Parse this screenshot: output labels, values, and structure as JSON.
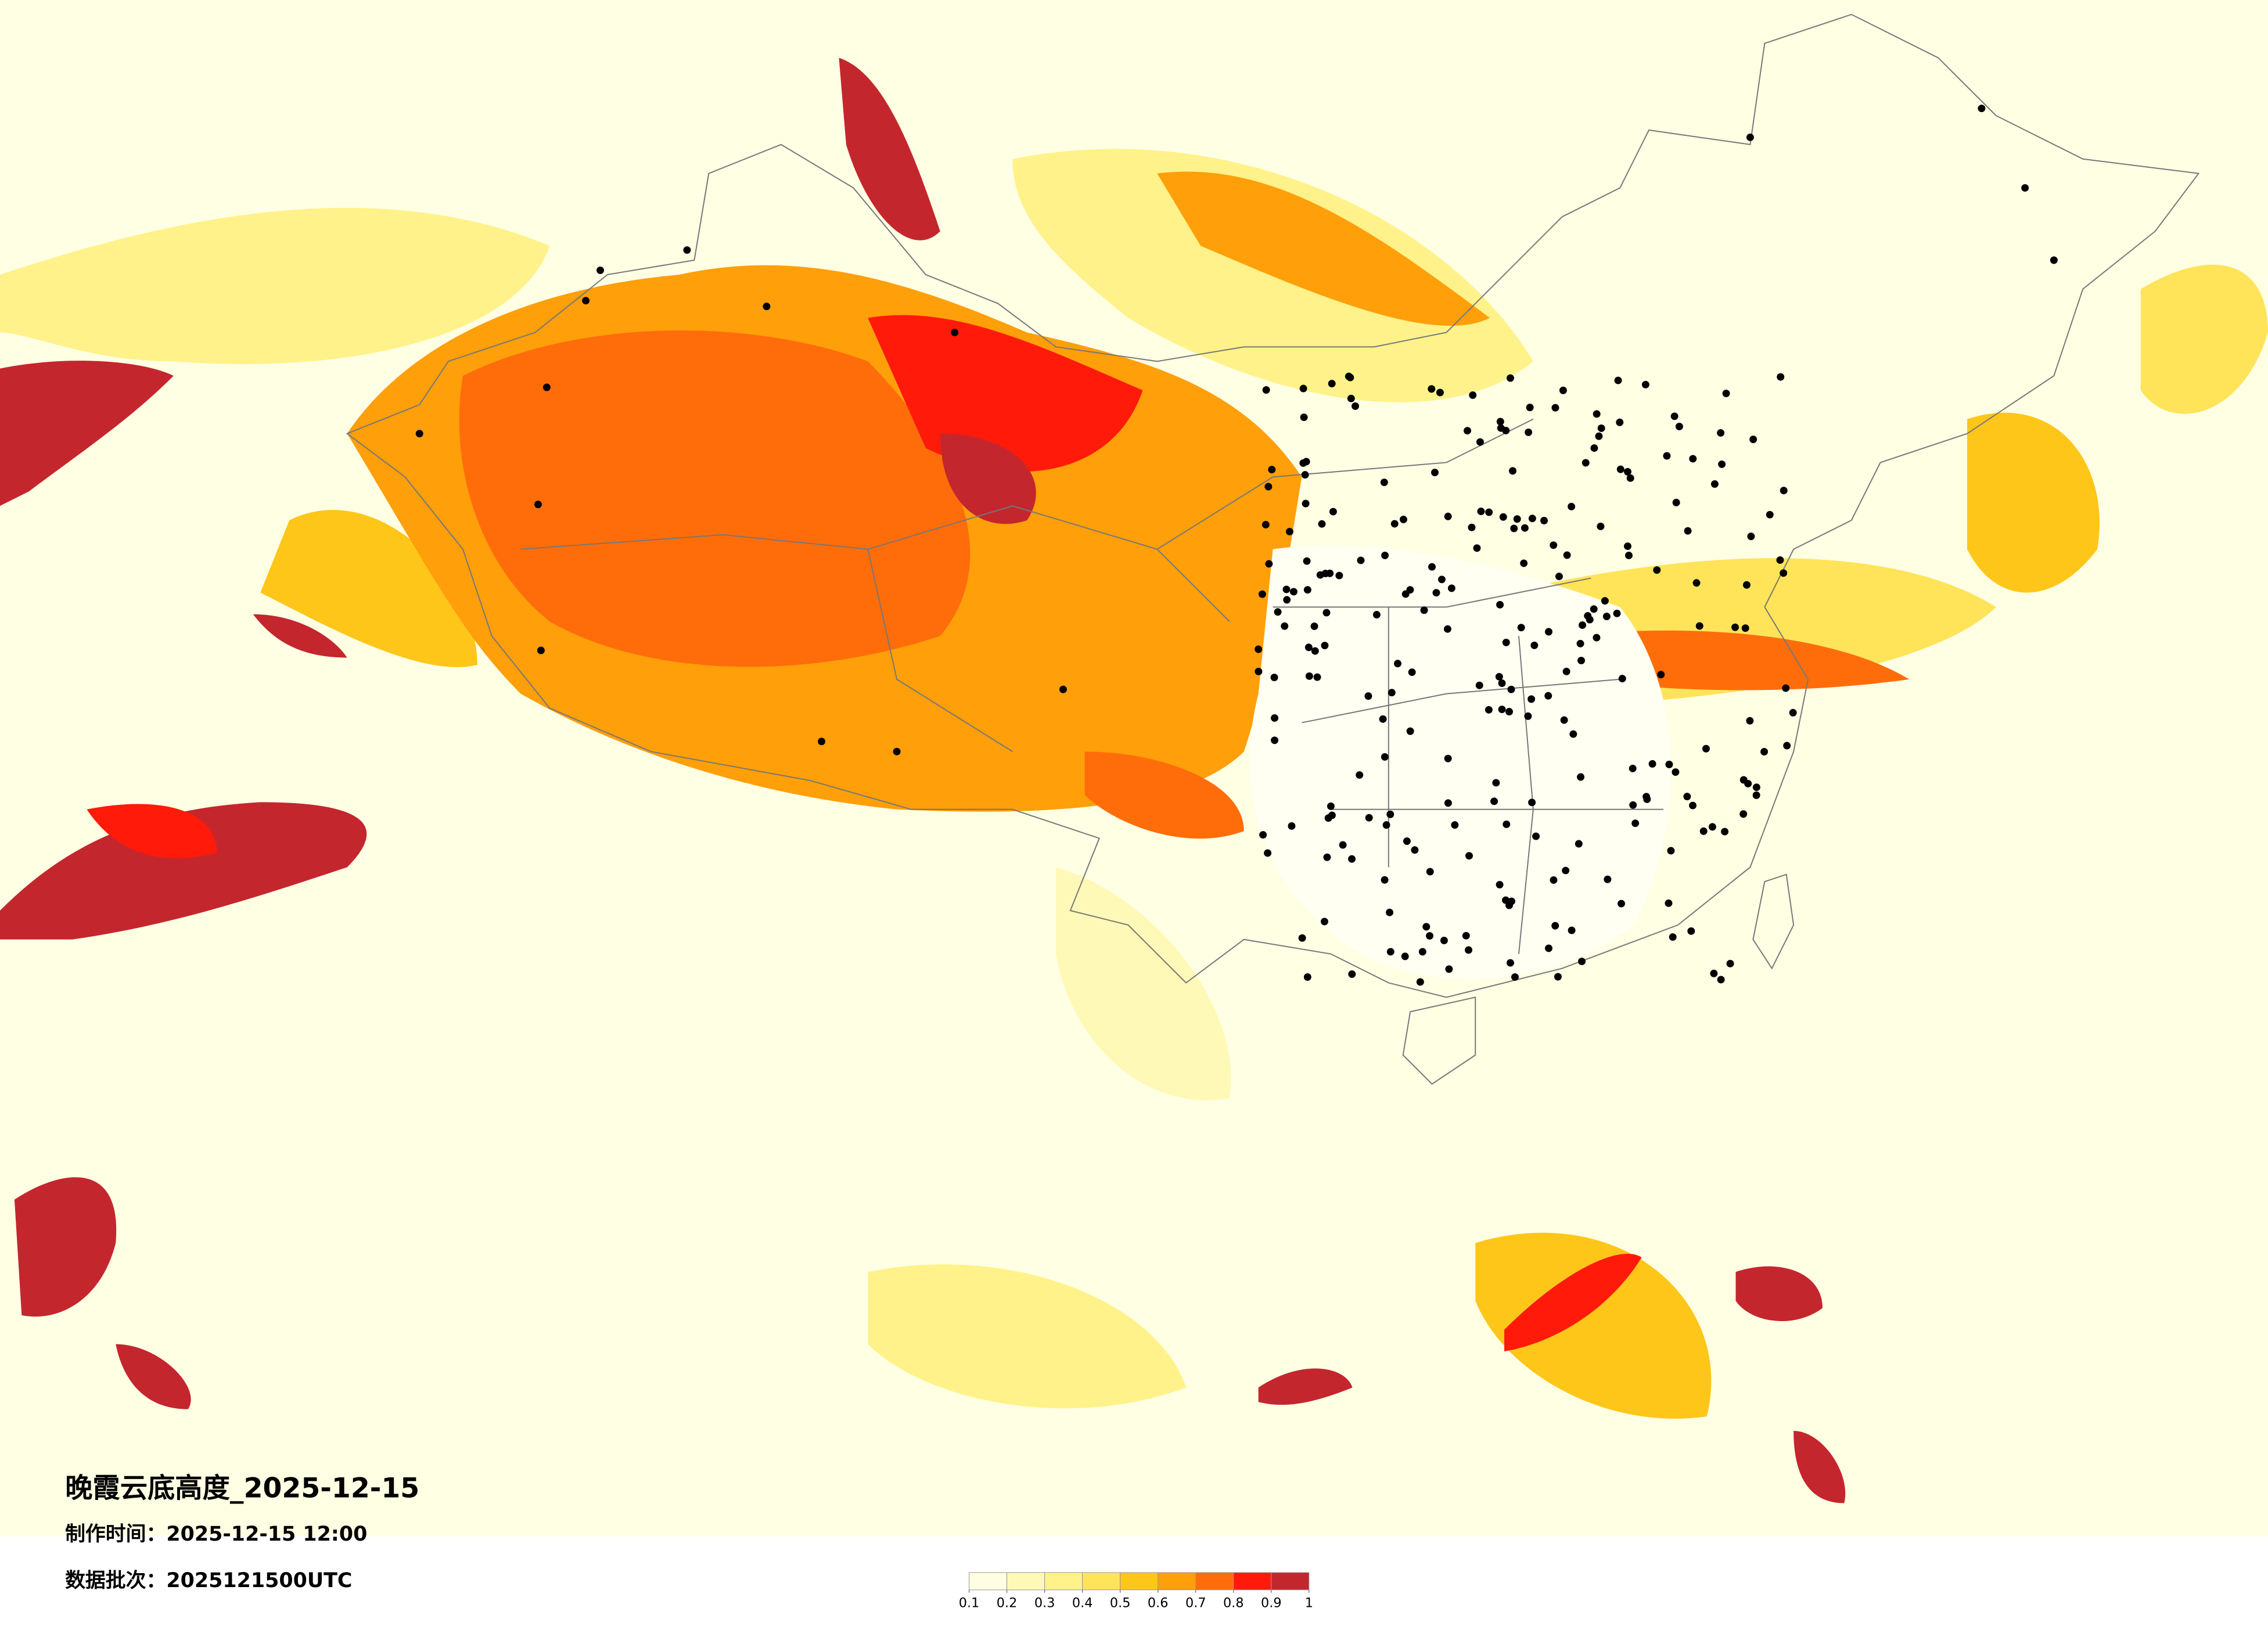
{
  "map": {
    "title": "晚霞云底高度_2025-12-15",
    "made_time": "制作时间：2025-12-15 12:00",
    "data_batch": "数据批次：2025121500UTC",
    "colorbar": {
      "ticks": [
        0.1,
        0.2,
        0.3,
        0.4,
        0.5,
        0.6,
        0.7,
        0.8,
        0.9,
        1
      ],
      "colors": [
        "#fffee2",
        "#fff9b8",
        "#fff28a",
        "#ffe45a",
        "#ffc61a",
        "#ff9f0a",
        "#ff6d0a",
        "#ff1a0a",
        "#c4262e"
      ]
    }
  }
}
